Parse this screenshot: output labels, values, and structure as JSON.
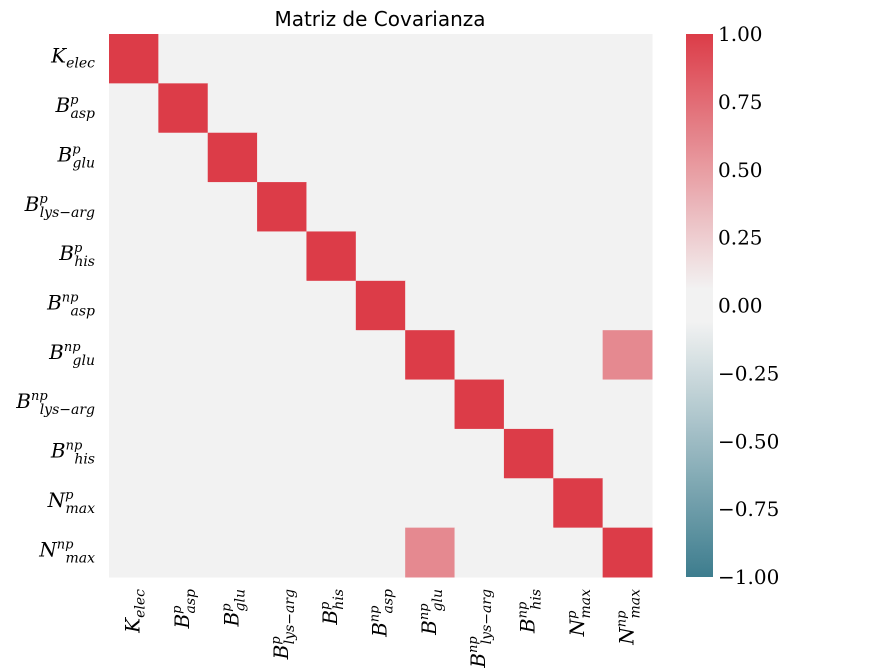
{
  "chart_data": {
    "type": "heatmap",
    "title": "Matriz de Covarianza",
    "rows": [
      {
        "base": "K",
        "sub": "elec",
        "sup": ""
      },
      {
        "base": "B",
        "sub": "asp",
        "sup": "p"
      },
      {
        "base": "B",
        "sub": "glu",
        "sup": "p"
      },
      {
        "base": "B",
        "sub": "lys−arg",
        "sup": "p"
      },
      {
        "base": "B",
        "sub": "his",
        "sup": "p"
      },
      {
        "base": "B",
        "sub": "asp",
        "sup": "np"
      },
      {
        "base": "B",
        "sub": "glu",
        "sup": "np"
      },
      {
        "base": "B",
        "sub": "lys−arg",
        "sup": "np"
      },
      {
        "base": "B",
        "sub": "his",
        "sup": "np"
      },
      {
        "base": "N",
        "sub": "max",
        "sup": "p"
      },
      {
        "base": "N",
        "sub": "max",
        "sup": "np"
      }
    ],
    "values": [
      [
        1.0,
        -0.03,
        -0.06,
        0.0,
        0.05,
        0.0,
        0.0,
        0.0,
        0.0,
        0.0,
        0.0
      ],
      [
        -0.03,
        1.0,
        0.0,
        0.0,
        0.0,
        0.0,
        0.0,
        0.0,
        0.0,
        0.05,
        0.0
      ],
      [
        -0.06,
        0.0,
        1.0,
        0.0,
        0.0,
        0.0,
        0.0,
        0.0,
        0.0,
        0.0,
        0.0
      ],
      [
        0.0,
        0.0,
        0.0,
        1.0,
        0.0,
        0.0,
        0.0,
        0.04,
        0.0,
        0.0,
        0.0
      ],
      [
        0.05,
        0.0,
        0.0,
        0.0,
        1.0,
        0.0,
        0.0,
        0.0,
        0.0,
        0.0,
        0.0
      ],
      [
        0.0,
        0.0,
        0.0,
        0.0,
        0.0,
        1.0,
        0.0,
        0.0,
        0.0,
        0.0,
        0.0
      ],
      [
        0.0,
        0.0,
        0.0,
        0.0,
        0.0,
        0.0,
        1.0,
        0.0,
        0.0,
        0.0,
        0.6
      ],
      [
        0.0,
        0.0,
        0.0,
        0.04,
        0.0,
        0.0,
        0.0,
        1.0,
        0.0,
        0.0,
        0.0
      ],
      [
        0.0,
        0.0,
        0.0,
        0.0,
        0.0,
        0.0,
        0.0,
        0.0,
        1.0,
        0.0,
        0.0
      ],
      [
        0.0,
        0.05,
        0.0,
        0.0,
        0.0,
        0.0,
        0.0,
        0.0,
        0.0,
        1.0,
        0.0
      ],
      [
        0.0,
        0.0,
        0.0,
        0.0,
        0.0,
        0.0,
        0.6,
        0.0,
        0.0,
        0.0,
        1.0
      ]
    ],
    "vmin": -1.0,
    "vmax": 1.0,
    "colorbar_ticks": [
      {
        "value": 1.0,
        "label": "1.00"
      },
      {
        "value": 0.75,
        "label": "0.75"
      },
      {
        "value": 0.5,
        "label": "0.50"
      },
      {
        "value": 0.25,
        "label": "0.25"
      },
      {
        "value": 0.0,
        "label": "0.00"
      },
      {
        "value": -0.25,
        "label": "−0.25"
      },
      {
        "value": -0.5,
        "label": "−0.50"
      },
      {
        "value": -0.75,
        "label": "−0.75"
      },
      {
        "value": -1.0,
        "label": "−1.00"
      }
    ],
    "colormap": {
      "negative_end": "#3d7d8e",
      "center": "#f2f2f2",
      "positive_end": "#dc3c48",
      "center_band": 0.03
    }
  }
}
